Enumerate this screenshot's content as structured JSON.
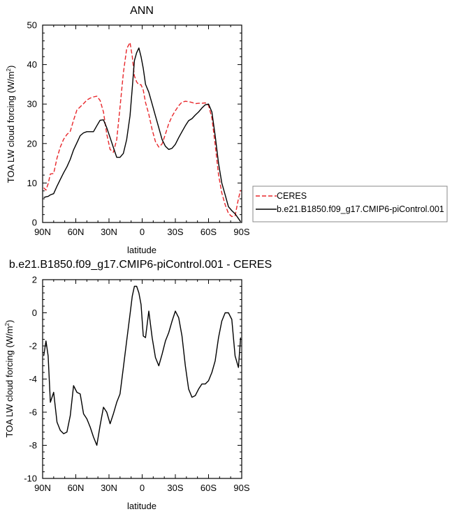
{
  "chart_data": [
    {
      "type": "line",
      "title": "ANN",
      "xlabel": "latitude",
      "ylabel": "TOA LW cloud forcing (W/m",
      "ylabel_sup": "2",
      "ylabel_close": ")",
      "xlim": [
        90,
        -90
      ],
      "ylim": [
        0,
        50
      ],
      "xtick_values": [
        90,
        60,
        30,
        0,
        -30,
        -60,
        -90
      ],
      "xtick_labels": [
        "90N",
        "60N",
        "30N",
        "0",
        "30S",
        "60S",
        "90S"
      ],
      "ytick_values": [
        0,
        10,
        20,
        30,
        40,
        50
      ],
      "ytick_labels": [
        "0",
        "10",
        "20",
        "30",
        "40",
        "50"
      ],
      "legend_position": "right",
      "series": [
        {
          "name": "CERES",
          "color": "#e8262a",
          "dash": "dashed",
          "x": [
            89,
            87,
            85,
            83,
            80,
            77,
            74,
            71,
            68,
            65,
            62,
            59,
            56,
            53,
            50,
            47,
            44,
            41,
            38,
            35,
            32,
            29,
            26,
            23,
            20,
            17,
            14,
            11,
            9,
            7,
            5,
            3,
            1,
            -1,
            -3,
            -6,
            -9,
            -12,
            -15,
            -18,
            -21,
            -24,
            -27,
            -30,
            -33,
            -36,
            -39,
            -42,
            -45,
            -48,
            -51,
            -54,
            -57,
            -60,
            -63,
            -66,
            -69,
            -72,
            -75,
            -78,
            -81,
            -84,
            -87,
            -89
          ],
          "y": [
            8.8,
            8.2,
            9.8,
            12.3,
            12.4,
            16.3,
            19.1,
            21.1,
            22.3,
            23.1,
            25.9,
            28.5,
            29.3,
            30.1,
            31.0,
            31.5,
            31.8,
            32.0,
            30.9,
            28.0,
            22.4,
            18.5,
            17.8,
            21.0,
            29.2,
            37.9,
            44.0,
            45.6,
            42.1,
            37.1,
            35.6,
            34.9,
            34.9,
            33.5,
            30.4,
            27.4,
            23.5,
            20.5,
            19.1,
            19.9,
            22.4,
            25.0,
            26.9,
            28.3,
            29.6,
            30.5,
            30.7,
            30.6,
            30.4,
            30.1,
            30.2,
            30.2,
            30.3,
            29.7,
            26.5,
            19.7,
            12.1,
            7.5,
            4.5,
            2.3,
            1.5,
            1.7,
            6.0,
            8.2
          ]
        },
        {
          "name": "b.e21.B1850.f09_g17.CMIP6-piControl.001",
          "color": "#000000",
          "dash": "solid",
          "x": [
            89,
            87,
            85,
            83,
            80,
            77,
            74,
            71,
            68,
            65,
            62,
            59,
            56,
            53,
            50,
            47,
            44,
            41,
            38,
            35,
            32,
            29,
            26,
            23,
            20,
            17,
            14,
            11,
            9,
            7,
            5,
            3,
            1,
            -1,
            -3,
            -6,
            -9,
            -12,
            -15,
            -18,
            -21,
            -24,
            -27,
            -30,
            -33,
            -36,
            -39,
            -42,
            -45,
            -48,
            -51,
            -54,
            -57,
            -60,
            -63,
            -66,
            -69,
            -72,
            -75,
            -78,
            -81,
            -84,
            -87,
            -89
          ],
          "y": [
            6.3,
            6.5,
            6.6,
            7.0,
            7.3,
            9.2,
            10.9,
            12.6,
            14.1,
            16.0,
            18.4,
            20.2,
            22.0,
            22.7,
            23.0,
            23.0,
            23.0,
            24.5,
            25.9,
            26.0,
            24.0,
            21.5,
            19.0,
            16.5,
            16.5,
            17.5,
            21.0,
            27.0,
            34.0,
            41.0,
            43.0,
            44.2,
            42.0,
            39.0,
            35.0,
            33.0,
            30.0,
            27.0,
            24.0,
            21.0,
            19.3,
            18.5,
            18.8,
            19.8,
            21.5,
            23.0,
            24.5,
            25.8,
            26.3,
            27.2,
            28.0,
            29.0,
            29.8,
            30.0,
            28.0,
            22.0,
            15.0,
            10.0,
            7.0,
            4.0,
            3.0,
            2.2,
            1.0,
            0.2
          ]
        }
      ]
    },
    {
      "type": "line",
      "title": "b.e21.B1850.f09_g17.CMIP6-piControl.001 - CERES",
      "xlabel": "latitude",
      "ylabel": "TOA LW cloud forcing (W/m",
      "ylabel_sup": "2",
      "ylabel_close": ")",
      "xlim": [
        90,
        -90
      ],
      "ylim": [
        -10,
        2
      ],
      "xtick_values": [
        90,
        60,
        30,
        0,
        -30,
        -60,
        -90
      ],
      "xtick_labels": [
        "90N",
        "60N",
        "30N",
        "0",
        "30S",
        "60S",
        "90S"
      ],
      "ytick_values": [
        -10,
        -8,
        -6,
        -4,
        -2,
        0,
        2
      ],
      "ytick_labels": [
        "-10",
        "-8",
        "-6",
        "-4",
        "-2",
        "0",
        "2"
      ],
      "series": [
        {
          "name": "",
          "color": "#000000",
          "dash": "solid",
          "x": [
            89,
            87,
            85,
            83,
            80,
            77,
            74,
            71,
            68,
            65,
            62,
            59,
            56,
            53,
            50,
            47,
            44,
            41,
            38,
            35,
            32,
            29,
            26,
            23,
            20,
            17,
            14,
            11,
            9,
            7,
            5,
            3,
            1,
            -1,
            -3,
            -6,
            -9,
            -12,
            -15,
            -18,
            -21,
            -24,
            -27,
            -30,
            -33,
            -36,
            -39,
            -42,
            -45,
            -48,
            -51,
            -54,
            -57,
            -60,
            -63,
            -66,
            -69,
            -72,
            -75,
            -78,
            -81,
            -84,
            -87,
            -89
          ],
          "y": [
            -2.6,
            -1.7,
            -2.6,
            -5.4,
            -4.8,
            -6.6,
            -7.1,
            -7.3,
            -7.2,
            -6.2,
            -4.4,
            -4.8,
            -4.9,
            -6.1,
            -6.4,
            -6.9,
            -7.5,
            -8.0,
            -6.8,
            -5.7,
            -6.0,
            -6.7,
            -6.1,
            -5.4,
            -4.9,
            -3.3,
            -1.7,
            -0.1,
            1.0,
            1.6,
            1.6,
            1.2,
            0.5,
            -1.4,
            -1.5,
            0.1,
            -1.5,
            -2.7,
            -3.2,
            -2.5,
            -1.7,
            -1.2,
            -0.5,
            0.1,
            -0.3,
            -1.4,
            -3.2,
            -4.6,
            -5.1,
            -5.0,
            -4.6,
            -4.3,
            -4.3,
            -4.1,
            -3.6,
            -2.9,
            -1.5,
            -0.5,
            0.0,
            0.0,
            -0.4,
            -2.6,
            -3.3,
            -1.5
          ]
        }
      ]
    }
  ]
}
